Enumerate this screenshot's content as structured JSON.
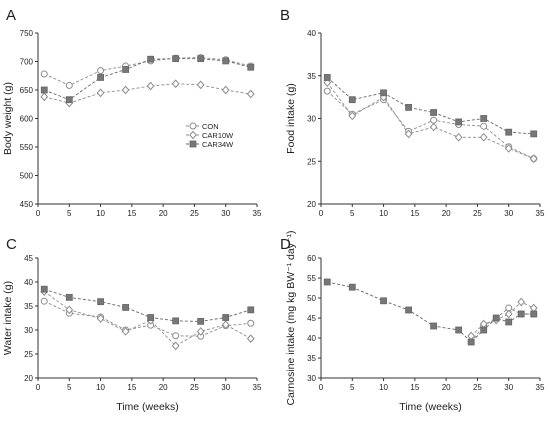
{
  "chart_data": [
    {
      "type": "line",
      "panel_label": "A",
      "ylabel": "Body weight (g)",
      "xlabel": "",
      "xlim": [
        0,
        35
      ],
      "ylim": [
        450,
        750
      ],
      "xticks": [
        0,
        5,
        10,
        15,
        20,
        25,
        30,
        35
      ],
      "yticks": [
        450,
        500,
        550,
        600,
        650,
        700,
        750
      ],
      "grid": false,
      "legend": {
        "position": "center-right",
        "entries": [
          "CON",
          "CAR10W",
          "CAR34W"
        ]
      },
      "series": [
        {
          "name": "CON",
          "marker": "circle-open",
          "x": [
            1,
            5,
            10,
            14,
            18,
            22,
            26,
            30,
            34
          ],
          "y": [
            678,
            658,
            684,
            692,
            701,
            706,
            707,
            703,
            692
          ]
        },
        {
          "name": "CAR10W",
          "marker": "diamond-open",
          "x": [
            1,
            5,
            10,
            14,
            18,
            22,
            26,
            30,
            34
          ],
          "y": [
            638,
            627,
            645,
            650,
            657,
            661,
            659,
            650,
            643
          ]
        },
        {
          "name": "CAR34W",
          "marker": "square-filled",
          "x": [
            1,
            5,
            10,
            14,
            18,
            22,
            26,
            30,
            34
          ],
          "y": [
            650,
            633,
            672,
            686,
            704,
            705,
            705,
            701,
            690
          ]
        }
      ]
    },
    {
      "type": "line",
      "panel_label": "B",
      "ylabel": "Food intake (g)",
      "xlabel": "",
      "xlim": [
        0,
        35
      ],
      "ylim": [
        20,
        40
      ],
      "xticks": [
        0,
        5,
        10,
        15,
        20,
        25,
        30,
        35
      ],
      "yticks": [
        20,
        25,
        30,
        35,
        40
      ],
      "grid": false,
      "series": [
        {
          "name": "CON",
          "marker": "circle-open",
          "x": [
            1,
            5,
            10,
            14,
            18,
            22,
            26,
            30,
            34
          ],
          "y": [
            33.2,
            30.5,
            32.2,
            28.5,
            29.8,
            29.3,
            29.1,
            26.7,
            25.3
          ]
        },
        {
          "name": "CAR10W",
          "marker": "diamond-open",
          "x": [
            1,
            5,
            10,
            14,
            18,
            22,
            26,
            30,
            34
          ],
          "y": [
            34.2,
            30.3,
            32.5,
            28.2,
            29.0,
            27.8,
            27.8,
            26.5,
            25.3
          ]
        },
        {
          "name": "CAR34W",
          "marker": "square-filled",
          "x": [
            1,
            5,
            10,
            14,
            18,
            22,
            26,
            30,
            34
          ],
          "y": [
            34.8,
            32.2,
            33.0,
            31.3,
            30.7,
            29.6,
            30.0,
            28.4,
            28.2
          ]
        }
      ]
    },
    {
      "type": "line",
      "panel_label": "C",
      "ylabel": "Water intake (g)",
      "xlabel": "Time (weeks)",
      "xlim": [
        0,
        35
      ],
      "ylim": [
        20,
        45
      ],
      "xticks": [
        0,
        5,
        10,
        15,
        20,
        25,
        30,
        35
      ],
      "yticks": [
        20,
        25,
        30,
        35,
        40,
        45
      ],
      "grid": false,
      "series": [
        {
          "name": "CON",
          "marker": "circle-open",
          "x": [
            1,
            5,
            10,
            14,
            18,
            22,
            26,
            30,
            34
          ],
          "y": [
            36.0,
            33.5,
            32.7,
            30.0,
            31.0,
            28.8,
            28.7,
            30.9,
            31.4
          ]
        },
        {
          "name": "CAR10W",
          "marker": "diamond-open",
          "x": [
            1,
            5,
            10,
            14,
            18,
            22,
            26,
            30,
            34
          ],
          "y": [
            38.0,
            34.2,
            32.4,
            29.7,
            32.0,
            26.7,
            29.7,
            31.1,
            28.2
          ]
        },
        {
          "name": "CAR34W",
          "marker": "square-filled",
          "x": [
            1,
            5,
            10,
            14,
            18,
            22,
            26,
            30,
            34
          ],
          "y": [
            38.5,
            36.8,
            35.9,
            34.7,
            32.6,
            31.9,
            31.8,
            32.6,
            34.2
          ]
        }
      ]
    },
    {
      "type": "line",
      "panel_label": "D",
      "ylabel": "Carnosine intake (mg kg BW⁻¹ day⁻¹)",
      "xlabel": "Time (weeks)",
      "xlim": [
        0,
        35
      ],
      "ylim": [
        30,
        60
      ],
      "xticks": [
        0,
        5,
        10,
        15,
        20,
        25,
        30,
        35
      ],
      "yticks": [
        30,
        35,
        40,
        45,
        50,
        55,
        60
      ],
      "grid": false,
      "series": [
        {
          "name": "CON",
          "marker": "circle-open",
          "x": [
            24,
            26,
            28,
            30,
            32,
            34
          ],
          "y": [
            39.0,
            43.0,
            45.0,
            47.5,
            46.0,
            46.0
          ]
        },
        {
          "name": "CAR10W",
          "marker": "diamond-open",
          "x": [
            24,
            26,
            28,
            30,
            32,
            34
          ],
          "y": [
            40.5,
            43.5,
            44.5,
            46.0,
            49.0,
            47.5
          ]
        },
        {
          "name": "CAR34W",
          "marker": "square-filled",
          "x": [
            1,
            5,
            10,
            14,
            18,
            22,
            24,
            26,
            28,
            30,
            32,
            34
          ],
          "y": [
            54.0,
            52.7,
            49.3,
            47.0,
            43.0,
            42.0,
            39.0,
            42.0,
            45.0,
            44.0,
            46.0,
            46.0
          ]
        }
      ]
    }
  ]
}
